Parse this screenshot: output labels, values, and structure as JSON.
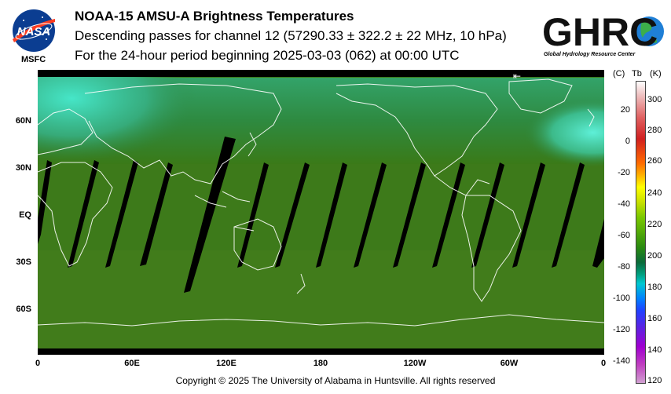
{
  "header": {
    "title": "NOAA-15 AMSU-A Brightness Temperatures",
    "subtitle": "Descending passes for channel 12 (57290.33 ± 322.2 ± 22 MHz, 10 hPa)",
    "period": "For the 24-hour period beginning 2025-03-03 (062) at 00:00 UTC"
  },
  "logos": {
    "nasa_label": "NASA",
    "msfc_label": "MSFC",
    "ghrc_label": "GHRC",
    "ghrc_subtitle": "Global Hydrology Resource Center"
  },
  "map": {
    "lat_labels": [
      "60N",
      "30N",
      "EQ",
      "30S",
      "60S"
    ],
    "lon_labels": [
      "0",
      "60E",
      "120E",
      "180",
      "120W",
      "60W",
      "0"
    ],
    "arrow_glyph": "⇤",
    "field_colors": {
      "ocean_green": "#3d7a1a",
      "polar_cyan": "#3fe0c0",
      "swath_gap": "#000000",
      "coastline": "#ffffff"
    }
  },
  "colorbar": {
    "unit_c": "(C)",
    "unit_tb": "Tb",
    "unit_k": "(K)",
    "celsius_ticks": [
      "20",
      "0",
      "-20",
      "-40",
      "-60",
      "-80",
      "-100",
      "-120",
      "-140"
    ],
    "kelvin_ticks": [
      "300",
      "280",
      "260",
      "240",
      "220",
      "200",
      "180",
      "160",
      "140",
      "120"
    ]
  },
  "footer": {
    "copyright": "Copyright © 2025 The University of Alabama in Huntsville.  All rights reserved"
  }
}
